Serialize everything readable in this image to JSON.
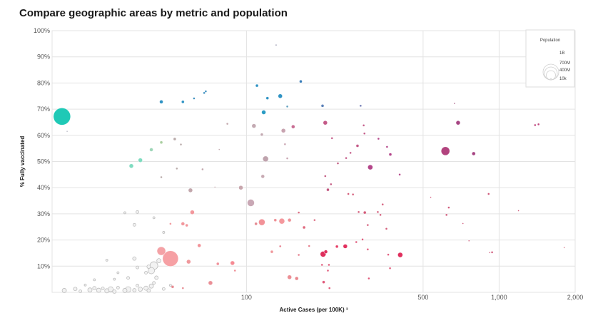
{
  "title": "Compare geographic areas by metric and population",
  "chart_data": {
    "type": "scatter",
    "title": "Compare geographic areas by metric and population",
    "xlabel": "Active Cases (per 100K) ³",
    "ylabel": "% Fully vaccinated",
    "x_scale": "log",
    "xlim": [
      17,
      2000
    ],
    "ylim": [
      0,
      100
    ],
    "x_ticks": [
      100,
      500,
      1000,
      2000
    ],
    "x_tick_labels": [
      "100",
      "500",
      "1,000",
      "2,000"
    ],
    "y_ticks": [
      10,
      20,
      30,
      40,
      50,
      60,
      70,
      80,
      90,
      100
    ],
    "y_tick_labels": [
      "10%",
      "20%",
      "30%",
      "40%",
      "50%",
      "60%",
      "70%",
      "80%",
      "90%",
      "100%"
    ],
    "grid": true,
    "legend": {
      "title": "Population",
      "placement": "top-right",
      "entries": [
        {
          "label": "1B",
          "value": 1000000000
        },
        {
          "label": "700M",
          "value": 700000000
        },
        {
          "label": "400M",
          "value": 400000000
        },
        {
          "label": "10k",
          "value": 10000
        }
      ]
    },
    "points": [
      {
        "x": 18.6,
        "y": 67.2,
        "r": 12,
        "c": "#1fc9b6"
      },
      {
        "x": 35,
        "y": 48.3,
        "r": 3,
        "c": "#7fdcc0"
      },
      {
        "x": 38,
        "y": 50.5,
        "r": 3,
        "c": "#7fdcc0"
      },
      {
        "x": 42,
        "y": 54.5,
        "r": 2.5,
        "c": "#9ed6b8"
      },
      {
        "x": 46,
        "y": 57.3,
        "r": 2,
        "c": "#a9cfa0"
      },
      {
        "x": 46,
        "y": 72.8,
        "r": 2.5,
        "c": "#2f93c4"
      },
      {
        "x": 56,
        "y": 72.8,
        "r": 2,
        "c": "#2f93c4"
      },
      {
        "x": 62,
        "y": 74.1,
        "r": 1.5,
        "c": "#3b8fbf"
      },
      {
        "x": 68,
        "y": 76.2,
        "r": 1.5,
        "c": "#3b8fbf"
      },
      {
        "x": 69,
        "y": 76.8,
        "r": 1.5,
        "c": "#3b8fbf"
      },
      {
        "x": 110,
        "y": 79,
        "r": 2,
        "c": "#2f93c4"
      },
      {
        "x": 121,
        "y": 74.2,
        "r": 2,
        "c": "#2f93c4"
      },
      {
        "x": 136,
        "y": 75,
        "r": 3,
        "c": "#2f93c4"
      },
      {
        "x": 145,
        "y": 71,
        "r": 1.5,
        "c": "#5a9cbc"
      },
      {
        "x": 117,
        "y": 68.8,
        "r": 3,
        "c": "#2a9bc4"
      },
      {
        "x": 164,
        "y": 80.6,
        "r": 2,
        "c": "#3c7fbb"
      },
      {
        "x": 200,
        "y": 71.3,
        "r": 2,
        "c": "#5a80b8"
      },
      {
        "x": 283,
        "y": 71.3,
        "r": 1.5,
        "c": "#6f79b4"
      },
      {
        "x": 131,
        "y": 94.5,
        "r": 1,
        "c": "#8a8aa6"
      },
      {
        "x": 19.5,
        "y": 61.5,
        "r": 1,
        "c": "#b9b9c3"
      },
      {
        "x": 52,
        "y": 58.6,
        "r": 2,
        "c": "#b8aaa9"
      },
      {
        "x": 55,
        "y": 56.5,
        "r": 1.5,
        "c": "#b8aaa9"
      },
      {
        "x": 53,
        "y": 47.3,
        "r": 1.5,
        "c": "#b8aaa9"
      },
      {
        "x": 46,
        "y": 44,
        "r": 1.5,
        "c": "#b8aaa9"
      },
      {
        "x": 60,
        "y": 39,
        "r": 3,
        "c": "#c2a7ac"
      },
      {
        "x": 67,
        "y": 47,
        "r": 1.5,
        "c": "#c2a7ac"
      },
      {
        "x": 75,
        "y": 40.2,
        "r": 1,
        "c": "#c2a7ac"
      },
      {
        "x": 78,
        "y": 54.6,
        "r": 1,
        "c": "#c2a7ac"
      },
      {
        "x": 84,
        "y": 64.4,
        "r": 1.5,
        "c": "#c2a7ac"
      },
      {
        "x": 95,
        "y": 40,
        "r": 3,
        "c": "#c8a6ad"
      },
      {
        "x": 107,
        "y": 63.6,
        "r": 3,
        "c": "#c3aab2"
      },
      {
        "x": 104,
        "y": 34.2,
        "r": 5,
        "c": "#c9a8b5"
      },
      {
        "x": 116,
        "y": 44.3,
        "r": 2.5,
        "c": "#c7a9b2"
      },
      {
        "x": 119,
        "y": 51,
        "r": 4,
        "c": "#bfa3ad"
      },
      {
        "x": 115,
        "y": 60.3,
        "r": 2,
        "c": "#c3aab2"
      },
      {
        "x": 140,
        "y": 61.8,
        "r": 3,
        "c": "#c8a3b0"
      },
      {
        "x": 142,
        "y": 56.6,
        "r": 1.5,
        "c": "#c8a3b0"
      },
      {
        "x": 145,
        "y": 51.2,
        "r": 1.5,
        "c": "#c8a3b0"
      },
      {
        "x": 153,
        "y": 63.3,
        "r": 2.5,
        "c": "#c86c92"
      },
      {
        "x": 109,
        "y": 26.2,
        "r": 2,
        "c": "#e48a91"
      },
      {
        "x": 115,
        "y": 26.8,
        "r": 4.5,
        "c": "#f29298"
      },
      {
        "x": 130,
        "y": 27.6,
        "r": 2,
        "c": "#ef9197"
      },
      {
        "x": 138,
        "y": 27.2,
        "r": 4,
        "c": "#f4989d"
      },
      {
        "x": 148,
        "y": 27.6,
        "r": 2.5,
        "c": "#ee9499"
      },
      {
        "x": 126,
        "y": 15.5,
        "r": 2,
        "c": "#f0979b"
      },
      {
        "x": 148,
        "y": 5.8,
        "r": 3,
        "c": "#ec8f95"
      },
      {
        "x": 158,
        "y": 5.3,
        "r": 2.5,
        "c": "#e9888e"
      },
      {
        "x": 61,
        "y": 30.6,
        "r": 3,
        "c": "#f2979c"
      },
      {
        "x": 58,
        "y": 25.6,
        "r": 2,
        "c": "#f2979c"
      },
      {
        "x": 56,
        "y": 26.2,
        "r": 2.5,
        "c": "#f2979c"
      },
      {
        "x": 50,
        "y": 26.2,
        "r": 1.5,
        "c": "#f2979c"
      },
      {
        "x": 46,
        "y": 15.8,
        "r": 6,
        "c": "#f4a2a6"
      },
      {
        "x": 50,
        "y": 12.9,
        "r": 11,
        "c": "#f6a0a4"
      },
      {
        "x": 59,
        "y": 11.7,
        "r": 3,
        "c": "#f0989c"
      },
      {
        "x": 65,
        "y": 17.9,
        "r": 2.5,
        "c": "#f29298"
      },
      {
        "x": 77,
        "y": 10.9,
        "r": 2,
        "c": "#f0919a"
      },
      {
        "x": 88,
        "y": 11.2,
        "r": 3,
        "c": "#f58a93"
      },
      {
        "x": 90,
        "y": 8.3,
        "r": 1.5,
        "c": "#ee8a92"
      },
      {
        "x": 72,
        "y": 3.6,
        "r": 3,
        "c": "#ea8f96"
      },
      {
        "x": 51,
        "y": 2.1,
        "r": 2,
        "c": "#e88b92"
      },
      {
        "x": 56,
        "y": 1.6,
        "r": 1.5,
        "c": "#e88b92"
      },
      {
        "x": 169,
        "y": 24.8,
        "r": 2,
        "c": "#e06a7e"
      },
      {
        "x": 161,
        "y": 30.5,
        "r": 1.5,
        "c": "#dc6d82"
      },
      {
        "x": 186,
        "y": 27.6,
        "r": 1.5,
        "c": "#dc6d82"
      },
      {
        "x": 177,
        "y": 17.7,
        "r": 1.5,
        "c": "#e67d8c"
      },
      {
        "x": 161,
        "y": 14.3,
        "r": 1.5,
        "c": "#e67d8c"
      },
      {
        "x": 136,
        "y": 17.6,
        "r": 1.5,
        "c": "#e67d8c"
      },
      {
        "x": 201,
        "y": 14.6,
        "r": 4,
        "c": "#de2f5c"
      },
      {
        "x": 206,
        "y": 15.5,
        "r": 2.5,
        "c": "#de2f5c"
      },
      {
        "x": 228,
        "y": 17.5,
        "r": 2,
        "c": "#e63e66"
      },
      {
        "x": 246,
        "y": 17.6,
        "r": 3,
        "c": "#e2305e"
      },
      {
        "x": 205,
        "y": 44.4,
        "r": 1.5,
        "c": "#c2577f"
      },
      {
        "x": 210,
        "y": 39.2,
        "r": 2,
        "c": "#c2577f"
      },
      {
        "x": 216,
        "y": 41.3,
        "r": 1.5,
        "c": "#c2577f"
      },
      {
        "x": 230,
        "y": 49.3,
        "r": 1.5,
        "c": "#c2577f"
      },
      {
        "x": 205,
        "y": 64.8,
        "r": 3,
        "c": "#c45a88"
      },
      {
        "x": 218,
        "y": 58.9,
        "r": 1.5,
        "c": "#c45a88"
      },
      {
        "x": 248,
        "y": 51.3,
        "r": 1.5,
        "c": "#c45a88"
      },
      {
        "x": 258,
        "y": 53.3,
        "r": 1.5,
        "c": "#c45a88"
      },
      {
        "x": 275,
        "y": 56,
        "r": 2,
        "c": "#c45a88"
      },
      {
        "x": 291,
        "y": 63.8,
        "r": 1.5,
        "c": "#c45a88"
      },
      {
        "x": 293,
        "y": 60.7,
        "r": 1.5,
        "c": "#c45a88"
      },
      {
        "x": 309,
        "y": 47.8,
        "r": 3.5,
        "c": "#b4468a"
      },
      {
        "x": 333,
        "y": 58.7,
        "r": 1.5,
        "c": "#b4468a"
      },
      {
        "x": 360,
        "y": 55.6,
        "r": 1.5,
        "c": "#b4468a"
      },
      {
        "x": 371,
        "y": 52.7,
        "r": 2,
        "c": "#b4468a"
      },
      {
        "x": 404,
        "y": 45,
        "r": 1.5,
        "c": "#b4468a"
      },
      {
        "x": 253,
        "y": 37.6,
        "r": 1.5,
        "c": "#d45d7b"
      },
      {
        "x": 264,
        "y": 37.4,
        "r": 1.5,
        "c": "#d45d7b"
      },
      {
        "x": 278,
        "y": 30.7,
        "r": 1.5,
        "c": "#d45d7b"
      },
      {
        "x": 294,
        "y": 30.5,
        "r": 2,
        "c": "#d45d7b"
      },
      {
        "x": 302,
        "y": 25.7,
        "r": 1.5,
        "c": "#d45d7b"
      },
      {
        "x": 331,
        "y": 30.7,
        "r": 1.5,
        "c": "#d45d7b"
      },
      {
        "x": 339,
        "y": 29.6,
        "r": 1.5,
        "c": "#d45d7b"
      },
      {
        "x": 358,
        "y": 24.3,
        "r": 1.5,
        "c": "#d45d7b"
      },
      {
        "x": 346,
        "y": 33.6,
        "r": 1.5,
        "c": "#d45d7b"
      },
      {
        "x": 272,
        "y": 19.2,
        "r": 1.5,
        "c": "#e0597a"
      },
      {
        "x": 288,
        "y": 20.2,
        "r": 1.5,
        "c": "#e0597a"
      },
      {
        "x": 302,
        "y": 16.4,
        "r": 1.5,
        "c": "#e0597a"
      },
      {
        "x": 364,
        "y": 14.4,
        "r": 1.5,
        "c": "#e0597a"
      },
      {
        "x": 406,
        "y": 14.3,
        "r": 3.5,
        "c": "#e0305e"
      },
      {
        "x": 199,
        "y": 10.5,
        "r": 1.5,
        "c": "#e0597a"
      },
      {
        "x": 212,
        "y": 10.5,
        "r": 1.5,
        "c": "#e0597a"
      },
      {
        "x": 210,
        "y": 8.3,
        "r": 1.5,
        "c": "#e0597a"
      },
      {
        "x": 202,
        "y": 3.9,
        "r": 2,
        "c": "#e0597a"
      },
      {
        "x": 213,
        "y": 1.6,
        "r": 1.5,
        "c": "#e0597a"
      },
      {
        "x": 305,
        "y": 5.3,
        "r": 1.5,
        "c": "#e0597a"
      },
      {
        "x": 370,
        "y": 9.2,
        "r": 1.5,
        "c": "#e0597a"
      },
      {
        "x": 613,
        "y": 54,
        "r": 6,
        "c": "#b2437e"
      },
      {
        "x": 666,
        "y": 72.2,
        "r": 1,
        "c": "#a0527f"
      },
      {
        "x": 688,
        "y": 64.8,
        "r": 3,
        "c": "#a64482"
      },
      {
        "x": 793,
        "y": 53,
        "r": 2.5,
        "c": "#a64482"
      },
      {
        "x": 619,
        "y": 29.6,
        "r": 1.5,
        "c": "#d05a7b"
      },
      {
        "x": 632,
        "y": 32.4,
        "r": 1.5,
        "c": "#d05a7b"
      },
      {
        "x": 719,
        "y": 26.3,
        "r": 1,
        "c": "#d05a7b"
      },
      {
        "x": 760,
        "y": 19.7,
        "r": 1,
        "c": "#d05a7b"
      },
      {
        "x": 536,
        "y": 36.3,
        "r": 1,
        "c": "#d05a7b"
      },
      {
        "x": 909,
        "y": 37.6,
        "r": 1.5,
        "c": "#d05a7b"
      },
      {
        "x": 918,
        "y": 15.2,
        "r": 1,
        "c": "#d05a7b"
      },
      {
        "x": 938,
        "y": 15.3,
        "r": 1.5,
        "c": "#d05a7b"
      },
      {
        "x": 1193,
        "y": 31.2,
        "r": 1,
        "c": "#d05a7b"
      },
      {
        "x": 1388,
        "y": 63.9,
        "r": 1.5,
        "c": "#c0467e"
      },
      {
        "x": 1432,
        "y": 64.2,
        "r": 1.5,
        "c": "#c0467e"
      },
      {
        "x": 1811,
        "y": 17.1,
        "r": 1,
        "c": "#d87e92"
      },
      {
        "x": 24,
        "y": 0.9,
        "r": 3,
        "c": "#dadada"
      },
      {
        "x": 25,
        "y": 1.6,
        "r": 2.5,
        "c": "#dadada"
      },
      {
        "x": 26,
        "y": 0.8,
        "r": 3,
        "c": "#dadada"
      },
      {
        "x": 27,
        "y": 1.5,
        "r": 2,
        "c": "#dadada"
      },
      {
        "x": 28,
        "y": 0.6,
        "r": 3,
        "c": "#dadada"
      },
      {
        "x": 29,
        "y": 1.2,
        "r": 3.5,
        "c": "#d9d9d9"
      },
      {
        "x": 30,
        "y": 0.3,
        "r": 2.5,
        "c": "#dadada"
      },
      {
        "x": 31,
        "y": 1.8,
        "r": 2,
        "c": "#dadada"
      },
      {
        "x": 33,
        "y": 0.7,
        "r": 3,
        "c": "#dadada"
      },
      {
        "x": 34,
        "y": 1.1,
        "r": 4,
        "c": "#dadada"
      },
      {
        "x": 36,
        "y": 0.8,
        "r": 2.5,
        "c": "#dadada"
      },
      {
        "x": 37,
        "y": 2.6,
        "r": 2,
        "c": "#dadada"
      },
      {
        "x": 38,
        "y": 1.2,
        "r": 3,
        "c": "#dadada"
      },
      {
        "x": 40,
        "y": 1.6,
        "r": 3,
        "c": "#dadada"
      },
      {
        "x": 41,
        "y": 0.7,
        "r": 2.5,
        "c": "#dadada"
      },
      {
        "x": 42,
        "y": 2.4,
        "r": 3,
        "c": "#dadada"
      },
      {
        "x": 43,
        "y": 3.6,
        "r": 2,
        "c": "#dadada"
      },
      {
        "x": 44,
        "y": 5.6,
        "r": 2.5,
        "c": "#dadada"
      },
      {
        "x": 40,
        "y": 7.5,
        "r": 2,
        "c": "#dadada"
      },
      {
        "x": 41,
        "y": 9.8,
        "r": 2.5,
        "c": "#dadada"
      },
      {
        "x": 43,
        "y": 10.2,
        "r": 5.5,
        "c": "#d9d9d9"
      },
      {
        "x": 45,
        "y": 12.1,
        "r": 3,
        "c": "#d9d9d9"
      },
      {
        "x": 42,
        "y": 8.3,
        "r": 4.5,
        "c": "#d9d9d9"
      },
      {
        "x": 37,
        "y": 9.5,
        "r": 2,
        "c": "#dadada"
      },
      {
        "x": 36,
        "y": 12.9,
        "r": 2.5,
        "c": "#dadada"
      },
      {
        "x": 34,
        "y": 5.5,
        "r": 2,
        "c": "#dadada"
      },
      {
        "x": 31,
        "y": 7.5,
        "r": 1.5,
        "c": "#dadada"
      },
      {
        "x": 30,
        "y": 5,
        "r": 1.5,
        "c": "#dadada"
      },
      {
        "x": 28,
        "y": 12.3,
        "r": 1.5,
        "c": "#dadada"
      },
      {
        "x": 36,
        "y": 25.8,
        "r": 2,
        "c": "#dadada"
      },
      {
        "x": 37,
        "y": 30.7,
        "r": 2,
        "c": "#dadada"
      },
      {
        "x": 33,
        "y": 30.4,
        "r": 1.5,
        "c": "#dadada"
      },
      {
        "x": 43,
        "y": 28.5,
        "r": 1.5,
        "c": "#dadada"
      },
      {
        "x": 47,
        "y": 22.9,
        "r": 1.5,
        "c": "#dadada"
      },
      {
        "x": 25,
        "y": 4.8,
        "r": 1.5,
        "c": "#dadada"
      },
      {
        "x": 23,
        "y": 2.8,
        "r": 1.5,
        "c": "#dadada"
      },
      {
        "x": 19,
        "y": 0.7,
        "r": 3,
        "c": "#dadada"
      },
      {
        "x": 21,
        "y": 1.3,
        "r": 2.5,
        "c": "#dadada"
      },
      {
        "x": 22,
        "y": 0.4,
        "r": 2,
        "c": "#dadada"
      },
      {
        "x": 47,
        "y": 1.3,
        "r": 2,
        "c": "#dadada"
      },
      {
        "x": 50,
        "y": 2.7,
        "r": 1.5,
        "c": "#dadada"
      }
    ]
  }
}
